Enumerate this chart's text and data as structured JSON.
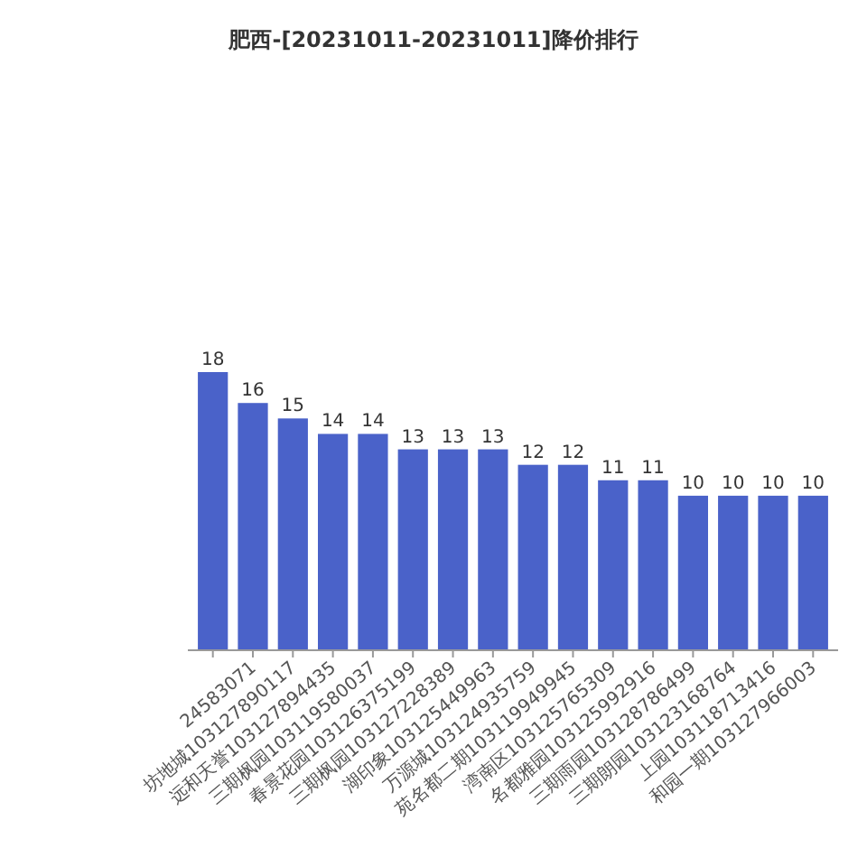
{
  "chart_data": {
    "type": "bar",
    "title": "肥西-[20231011-20231011]降价排行",
    "categories": [
      null,
      "24583071",
      "坊地城103127890117",
      "远和天誉103127894435",
      "三期枫园103119580037",
      "春景花园103126375199",
      "三期枫园103127228389",
      "湖印象103125449963",
      "万源城103124935759",
      "苑名都二期103119949945",
      "湾南区103125765309",
      "名都雅园103125992916",
      "三期雨园103128786499",
      "三期朗园103123168764",
      "上园103118713416",
      "和园一期103127966003"
    ],
    "values": [
      18,
      16,
      15,
      14,
      14,
      13,
      13,
      13,
      12,
      12,
      11,
      11,
      10,
      10,
      10,
      10
    ],
    "color": "#4a62c9",
    "data_labels": true,
    "tick_labels": "x"
  }
}
